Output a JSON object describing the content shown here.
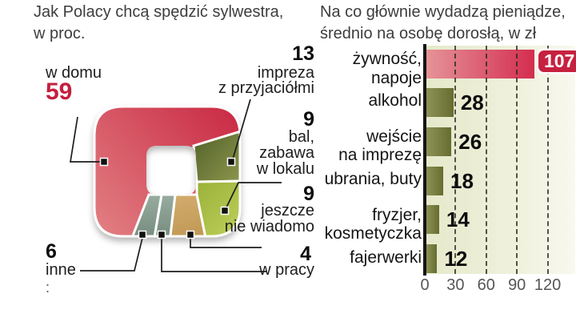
{
  "donut_chart": {
    "title_lines": [
      "Jak Polacy chcą spędzić sylwestra,",
      "w proc."
    ],
    "callouts": {
      "w_domu": {
        "value": "59",
        "line1": "w domu"
      },
      "impreza": {
        "value": "13",
        "line1": "impreza",
        "line2": "z przyjaciółmi"
      },
      "bal": {
        "value": "9",
        "line1": "bal,",
        "line2": "zabawa",
        "line3": "w lokalu"
      },
      "jeszcze": {
        "value": "9",
        "line1": "jeszcze",
        "line2": "nie wiadomo"
      },
      "praca": {
        "value": "4",
        "line1": "w pracy"
      },
      "inne": {
        "value": "6",
        "line1": "inne"
      }
    },
    "stray_mark": ":"
  },
  "bar_chart": {
    "title_lines": [
      "Na co głównie wydadzą pieniądze,",
      "średnio na osobę dorosłą, w zł"
    ],
    "rows": [
      {
        "lines": [
          "żywność,",
          "napoje"
        ],
        "value": "107"
      },
      {
        "lines": [
          "alkohol"
        ],
        "value": "28"
      },
      {
        "lines": [
          "wejście",
          "na imprezę"
        ],
        "value": "26"
      },
      {
        "lines": [
          "ubrania, buty"
        ],
        "value": "18"
      },
      {
        "lines": [
          "fryzjer,",
          "kosmetyczka"
        ],
        "value": "14"
      },
      {
        "lines": [
          "fajerwerki"
        ],
        "value": "12"
      }
    ],
    "x_tick_labels": [
      "0",
      "30",
      "60",
      "90",
      "120"
    ]
  },
  "colors": {
    "accent_red": "#c41f3e",
    "badge_red": "#c62240",
    "bar_red_light": "#e59398",
    "bar_red_dark": "#d42d4e",
    "bar_olive_light": "#8d9257",
    "bar_olive_dark": "#676c30",
    "donut_red": "#cf3448",
    "donut_olive": "#6e7b39",
    "donut_yellow_green": "#a9bd45",
    "donut_tan": "#c79f5e",
    "donut_teal": "#84a090"
  },
  "chart_data": [
    {
      "type": "pie",
      "shape": "rounded-square-donut",
      "title": "Jak Polacy chcą spędzić sylwestra, w proc.",
      "labels": [
        "w domu",
        "impreza z przyjaciółmi",
        "bal, zabawa w lokalu",
        "jeszcze nie wiadomo",
        "w pracy",
        "inne"
      ],
      "values": [
        59,
        13,
        9,
        9,
        4,
        6
      ],
      "colors": [
        "#cf3448",
        "#6e7b39",
        "#a9bd45",
        "#c79f5e",
        "#84a090",
        "#84a090"
      ]
    },
    {
      "type": "bar",
      "orientation": "horizontal",
      "title": "Na co głównie wydadzą pieniądze, średnio na osobę dorosłą, w zł",
      "categories": [
        "żywność, napoje",
        "alkohol",
        "wejście na imprezę",
        "ubrania, buty",
        "fryzjer, kosmetyczka",
        "fajerwerki"
      ],
      "values": [
        107,
        28,
        26,
        18,
        14,
        12
      ],
      "xlim": [
        0,
        120
      ],
      "x_ticks": [
        0,
        30,
        60,
        90,
        120
      ],
      "grid": "dashed-vertical",
      "legend": "none"
    }
  ]
}
